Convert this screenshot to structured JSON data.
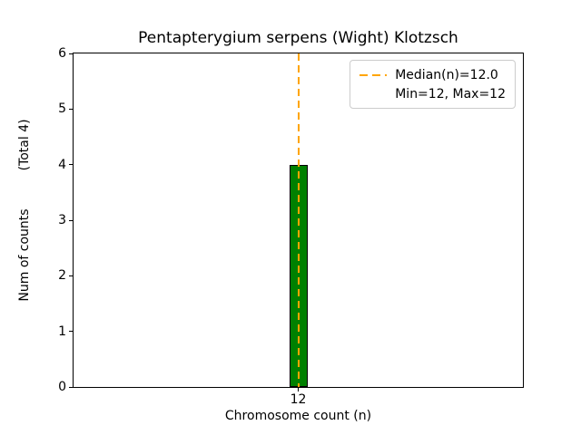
{
  "chart_data": {
    "type": "bar",
    "title": "Pentapterygium serpens (Wight) Klotzsch",
    "xlabel": "Chromosome count (n)",
    "ylabel": "Num of counts",
    "ylabel_note": "(Total 4)",
    "categories": [
      "12"
    ],
    "values": [
      4
    ],
    "total_counts": 4,
    "ylim": [
      0,
      6
    ],
    "yticks": [
      0,
      1,
      2,
      3,
      4,
      5,
      6
    ],
    "median": 12.0,
    "min": 12,
    "max": 12,
    "grid": false,
    "legend": {
      "position": "upper right",
      "entries": [
        {
          "label": "Median(n)=12.0",
          "has_line": true
        },
        {
          "label": "Min=12, Max=12",
          "has_line": false
        }
      ]
    },
    "colors": {
      "bar_fill": "#008000",
      "bar_edge": "#000000",
      "median_line": "#FFA500",
      "legend_border": "#cccccc"
    }
  }
}
